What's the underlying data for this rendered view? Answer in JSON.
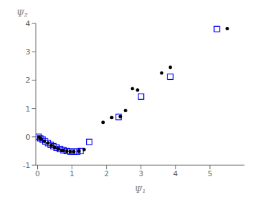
{
  "chart_data": {
    "type": "scatter",
    "xlabel": "Ψ₁",
    "ylabel": "Ψ₂",
    "xlim": [
      -0.05,
      6.0
    ],
    "ylim": [
      -1.0,
      4.0
    ],
    "xticks": [
      0,
      1,
      2,
      3,
      4,
      5
    ],
    "yticks": [
      -1,
      0,
      1,
      2,
      3,
      4
    ],
    "grid": false,
    "series": [
      {
        "color": "blue",
        "marker": "square_open",
        "x": [
          0.03,
          0.08,
          0.15,
          0.22,
          0.3,
          0.38,
          0.46,
          0.55,
          0.65,
          0.75,
          0.85,
          0.95,
          1.05,
          1.15,
          1.25,
          1.5,
          2.35,
          3.0,
          3.85,
          5.2
        ],
        "values": [
          0.0,
          -0.05,
          -0.1,
          -0.16,
          -0.22,
          -0.28,
          -0.33,
          -0.38,
          -0.43,
          -0.47,
          -0.5,
          -0.52,
          -0.52,
          -0.52,
          -0.5,
          -0.18,
          0.7,
          1.42,
          2.12,
          3.8
        ]
      },
      {
        "color": "black",
        "marker": "circle",
        "x": [
          0.05,
          0.1,
          0.2,
          0.3,
          0.4,
          0.5,
          0.6,
          0.7,
          0.75,
          0.85,
          0.95,
          1.05,
          1.2,
          1.35,
          1.9,
          2.15,
          2.4,
          2.55,
          2.75,
          2.9,
          3.6,
          3.85,
          5.5
        ],
        "values": [
          -0.02,
          -0.08,
          -0.15,
          -0.22,
          -0.3,
          -0.37,
          -0.42,
          -0.47,
          -0.48,
          -0.5,
          -0.52,
          -0.52,
          -0.5,
          -0.45,
          0.51,
          0.68,
          0.72,
          0.93,
          1.7,
          1.65,
          2.25,
          2.45,
          3.82
        ]
      }
    ]
  }
}
